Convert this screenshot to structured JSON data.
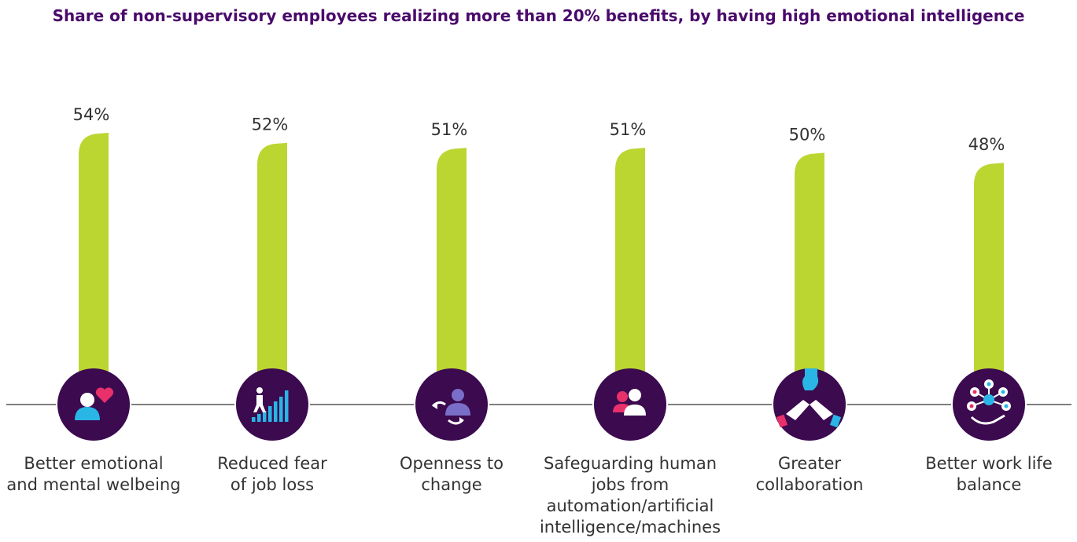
{
  "chart_data": {
    "type": "bar",
    "title": "Share of non-supervisory employees realizing more than 20% benefits, by having high emotional intelligence",
    "categories": [
      "Better emotional and mental welbeing",
      "Reduced fear of job loss",
      "Openness to change",
      "Safeguarding human jobs from automation/artificial intelligence/machines",
      "Greater collaboration",
      "Better work life balance"
    ],
    "category_lines": [
      [
        "Better emotional",
        "and mental welbeing"
      ],
      [
        "Reduced fear",
        "of job loss"
      ],
      [
        "Openness to",
        "change"
      ],
      [
        "Safeguarding human",
        "jobs from",
        "automation/artificial",
        "intelligence/machines"
      ],
      [
        "Greater",
        "collaboration"
      ],
      [
        "Better work life",
        "balance"
      ]
    ],
    "values": [
      54,
      52,
      51,
      51,
      50,
      48
    ],
    "value_labels": [
      "54%",
      "52%",
      "51%",
      "51%",
      "50%",
      "48%"
    ],
    "icons": [
      "person-heart-icon",
      "stairs-growth-icon",
      "person-change-icon",
      "two-people-icon",
      "hands-stack-icon",
      "network-hand-icon"
    ],
    "unit": "%",
    "ylim": [
      0,
      60
    ],
    "grid": false,
    "legend": "none"
  },
  "colors": {
    "bar": "#bcd631",
    "title": "#4a0a6b",
    "circle": "#3b0a4f",
    "axis": "#333333",
    "accent_blue": "#29b6e6",
    "accent_pink": "#e8306a",
    "accent_purple": "#7a6fc8"
  }
}
